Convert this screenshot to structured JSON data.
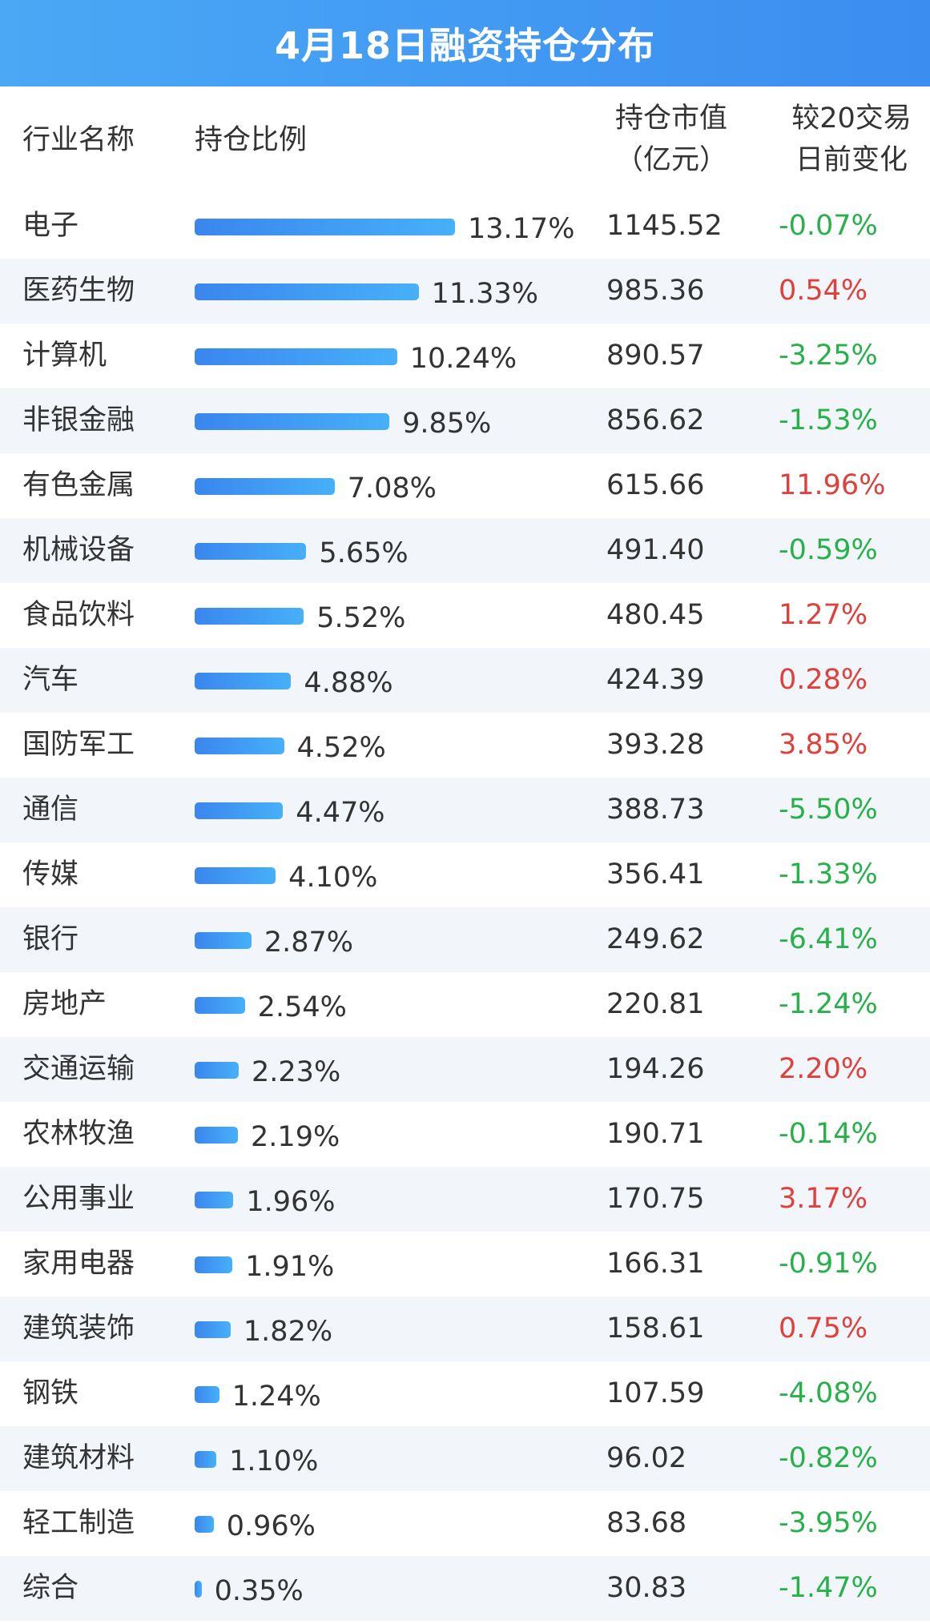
{
  "chart_data": {
    "type": "table",
    "title": "4月18日融资持仓分布",
    "columns": {
      "name": "行业名称",
      "ratio": "持仓比例",
      "value_line1": "持仓市值",
      "value_line2": "（亿元）",
      "change_line1": "较20交易",
      "change_line2": "日前变化"
    },
    "rows": [
      {
        "name": "电子",
        "ratio": 13.17,
        "ratio_label": "13.17%",
        "value": "1145.52",
        "change": "-0.07%"
      },
      {
        "name": "医药生物",
        "ratio": 11.33,
        "ratio_label": "11.33%",
        "value": "985.36",
        "change": "0.54%"
      },
      {
        "name": "计算机",
        "ratio": 10.24,
        "ratio_label": "10.24%",
        "value": "890.57",
        "change": "-3.25%"
      },
      {
        "name": "非银金融",
        "ratio": 9.85,
        "ratio_label": "9.85%",
        "value": "856.62",
        "change": "-1.53%"
      },
      {
        "name": "有色金属",
        "ratio": 7.08,
        "ratio_label": "7.08%",
        "value": "615.66",
        "change": "11.96%"
      },
      {
        "name": "机械设备",
        "ratio": 5.65,
        "ratio_label": "5.65%",
        "value": "491.40",
        "change": "-0.59%"
      },
      {
        "name": "食品饮料",
        "ratio": 5.52,
        "ratio_label": "5.52%",
        "value": "480.45",
        "change": "1.27%"
      },
      {
        "name": "汽车",
        "ratio": 4.88,
        "ratio_label": "4.88%",
        "value": "424.39",
        "change": "0.28%"
      },
      {
        "name": "国防军工",
        "ratio": 4.52,
        "ratio_label": "4.52%",
        "value": "393.28",
        "change": "3.85%"
      },
      {
        "name": "通信",
        "ratio": 4.47,
        "ratio_label": "4.47%",
        "value": "388.73",
        "change": "-5.50%"
      },
      {
        "name": "传媒",
        "ratio": 4.1,
        "ratio_label": "4.10%",
        "value": "356.41",
        "change": "-1.33%"
      },
      {
        "name": "银行",
        "ratio": 2.87,
        "ratio_label": "2.87%",
        "value": "249.62",
        "change": "-6.41%"
      },
      {
        "name": "房地产",
        "ratio": 2.54,
        "ratio_label": "2.54%",
        "value": "220.81",
        "change": "-1.24%"
      },
      {
        "name": "交通运输",
        "ratio": 2.23,
        "ratio_label": "2.23%",
        "value": "194.26",
        "change": "2.20%"
      },
      {
        "name": "农林牧渔",
        "ratio": 2.19,
        "ratio_label": "2.19%",
        "value": "190.71",
        "change": "-0.14%"
      },
      {
        "name": "公用事业",
        "ratio": 1.96,
        "ratio_label": "1.96%",
        "value": "170.75",
        "change": "3.17%"
      },
      {
        "name": "家用电器",
        "ratio": 1.91,
        "ratio_label": "1.91%",
        "value": "166.31",
        "change": "-0.91%"
      },
      {
        "name": "建筑装饰",
        "ratio": 1.82,
        "ratio_label": "1.82%",
        "value": "158.61",
        "change": "0.75%"
      },
      {
        "name": "钢铁",
        "ratio": 1.24,
        "ratio_label": "1.24%",
        "value": "107.59",
        "change": "-4.08%"
      },
      {
        "name": "建筑材料",
        "ratio": 1.1,
        "ratio_label": "1.10%",
        "value": "96.02",
        "change": "-0.82%"
      },
      {
        "name": "轻工制造",
        "ratio": 0.96,
        "ratio_label": "0.96%",
        "value": "83.68",
        "change": "-3.95%"
      },
      {
        "name": "综合",
        "ratio": 0.35,
        "ratio_label": "0.35%",
        "value": "30.83",
        "change": "-1.47%"
      }
    ]
  },
  "colors": {
    "header_bg": "#3b8df0",
    "bar": "#3a86ee",
    "positive": "#e0403b",
    "negative": "#27b14a",
    "alt_row": "#f2f5fa"
  }
}
